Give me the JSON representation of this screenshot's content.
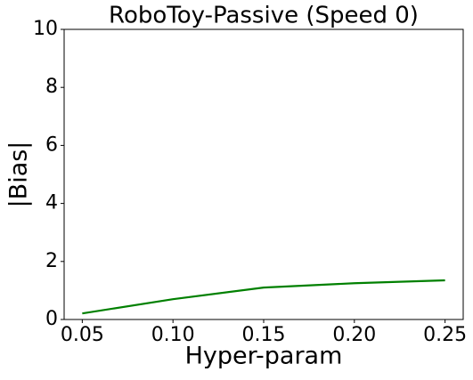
{
  "chart_data": {
    "type": "line",
    "title": "RoboToy-Passive (Speed 0)",
    "x_label": "Hyper-param",
    "y_label": "|Bias|",
    "x": [
      0.05,
      0.1,
      0.15,
      0.2,
      0.25
    ],
    "series": [
      {
        "name": "Bias",
        "color": "#008000",
        "values": [
          0.21,
          0.7,
          1.1,
          1.25,
          1.35
        ]
      }
    ],
    "xlim": [
      0.04,
      0.26
    ],
    "xticks": [
      0.05,
      {
        "value": 0.1,
        "label": "0.10"
      },
      0.15,
      {
        "value": 0.2,
        "label": "0.20"
      },
      0.25
    ],
    "ylim": [
      0,
      10
    ],
    "yticks": [
      0,
      2,
      4,
      6,
      8,
      10
    ],
    "grid": false
  }
}
